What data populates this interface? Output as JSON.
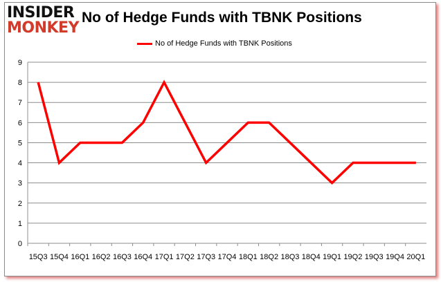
{
  "logo": {
    "line1": "INSIDER",
    "line2": "MONKEY"
  },
  "chart_data": {
    "type": "line",
    "title": "No of Hedge Funds with TBNK Positions",
    "categories": [
      "15Q3",
      "15Q4",
      "16Q1",
      "16Q2",
      "16Q3",
      "16Q4",
      "17Q1",
      "17Q2",
      "17Q3",
      "17Q4",
      "18Q1",
      "18Q2",
      "18Q3",
      "18Q4",
      "19Q1",
      "19Q2",
      "19Q3",
      "19Q4",
      "20Q1"
    ],
    "series": [
      {
        "name": "No of Hedge Funds with TBNK Positions",
        "color": "#ff0000",
        "values": [
          8,
          4,
          5,
          5,
          5,
          6,
          8,
          6,
          4,
          5,
          6,
          6,
          5,
          4,
          3,
          4,
          4,
          4,
          4
        ]
      }
    ],
    "ylim": [
      0,
      9
    ],
    "yticks": [
      0,
      1,
      2,
      3,
      4,
      5,
      6,
      7,
      8,
      9
    ],
    "grid": true,
    "legend": "top-center"
  }
}
